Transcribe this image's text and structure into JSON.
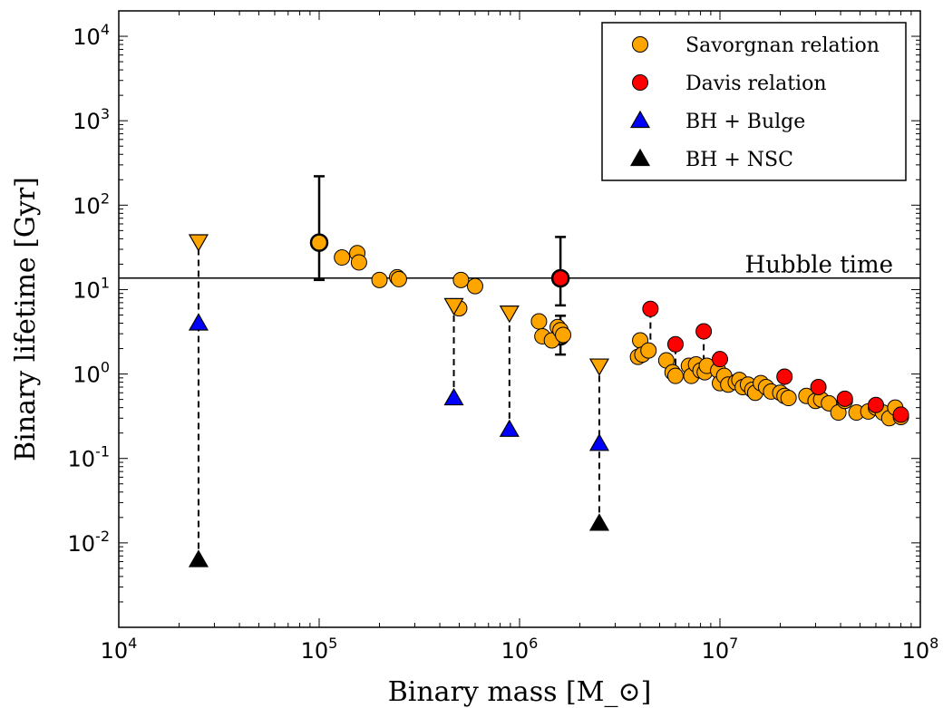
{
  "chart_data": {
    "type": "scatter",
    "xscale": "log",
    "yscale": "log",
    "xlim": [
      10000,
      100000000
    ],
    "ylim": [
      0.001,
      20000
    ],
    "xlabel": "Binary mass [M_⊙]",
    "ylabel": "Binary lifetime [Gyr]",
    "x_ticks": [
      {
        "value": 10000,
        "base": "10",
        "exp": "4"
      },
      {
        "value": 100000,
        "base": "10",
        "exp": "5"
      },
      {
        "value": 1000000,
        "base": "10",
        "exp": "6"
      },
      {
        "value": 10000000,
        "base": "10",
        "exp": "7"
      },
      {
        "value": 100000000,
        "base": "10",
        "exp": "8"
      }
    ],
    "y_ticks": [
      {
        "value": 0.01,
        "base": "10",
        "exp": "-2"
      },
      {
        "value": 0.1,
        "base": "10",
        "exp": "-1"
      },
      {
        "value": 1,
        "base": "10",
        "exp": "0"
      },
      {
        "value": 10,
        "base": "10",
        "exp": "1"
      },
      {
        "value": 100,
        "base": "10",
        "exp": "2"
      },
      {
        "value": 1000,
        "base": "10",
        "exp": "3"
      },
      {
        "value": 10000,
        "base": "10",
        "exp": "4"
      }
    ],
    "hubble_line": {
      "y": 13.7,
      "label": "Hubble time"
    },
    "legend": {
      "placement": "top-right",
      "entries": [
        {
          "label": "Savorgnan relation",
          "marker": "circle",
          "color": "#FFA500"
        },
        {
          "label": "Davis relation",
          "marker": "circle",
          "color": "#FF0000"
        },
        {
          "label": "BH + Bulge",
          "marker": "triangle-up",
          "color": "#0000FF"
        },
        {
          "label": "BH + NSC",
          "marker": "triangle-up",
          "color": "#000000"
        }
      ]
    },
    "series": [
      {
        "name": "Savorgnan relation",
        "marker": "circle",
        "color": "#FFA500",
        "points": [
          [
            130000,
            24
          ],
          [
            155000,
            27
          ],
          [
            158000,
            21
          ],
          [
            200000,
            13
          ],
          [
            245000,
            14
          ],
          [
            250000,
            13.3
          ],
          [
            510000,
            13
          ],
          [
            500000,
            6
          ],
          [
            600000,
            11
          ],
          [
            1250000,
            4.2
          ],
          [
            1300000,
            2.8
          ],
          [
            1450000,
            2.5
          ],
          [
            1550000,
            3.6
          ],
          [
            1600000,
            3.3
          ],
          [
            1650000,
            2.9
          ],
          [
            3900000,
            1.6
          ],
          [
            4000000,
            2.5
          ],
          [
            4100000,
            1.7
          ],
          [
            4400000,
            1.9
          ],
          [
            5400000,
            1.45
          ],
          [
            5800000,
            1.05
          ],
          [
            6000000,
            0.95
          ],
          [
            7000000,
            1.25
          ],
          [
            7200000,
            0.95
          ],
          [
            7600000,
            1.3
          ],
          [
            8000000,
            1.1
          ],
          [
            8400000,
            1.05
          ],
          [
            8600000,
            1.25
          ],
          [
            9800000,
            1.1
          ],
          [
            10000000,
            0.78
          ],
          [
            10500000,
            0.95
          ],
          [
            11000000,
            0.75
          ],
          [
            12000000,
            0.8
          ],
          [
            12500000,
            0.85
          ],
          [
            13000000,
            0.7
          ],
          [
            13800000,
            0.75
          ],
          [
            14500000,
            0.65
          ],
          [
            15000000,
            0.6
          ],
          [
            16000000,
            0.78
          ],
          [
            17000000,
            0.7
          ],
          [
            18000000,
            0.62
          ],
          [
            20000000,
            0.6
          ],
          [
            21000000,
            0.55
          ],
          [
            22000000,
            0.52
          ],
          [
            27000000,
            0.55
          ],
          [
            30000000,
            0.48
          ],
          [
            32000000,
            0.5
          ],
          [
            35000000,
            0.45
          ],
          [
            39000000,
            0.35
          ],
          [
            42000000,
            0.48
          ],
          [
            48000000,
            0.35
          ],
          [
            55000000,
            0.36
          ],
          [
            60000000,
            0.4
          ],
          [
            65000000,
            0.35
          ],
          [
            70000000,
            0.3
          ],
          [
            75000000,
            0.4
          ],
          [
            80000000,
            0.31
          ]
        ]
      },
      {
        "name": "Davis relation",
        "marker": "circle",
        "color": "#FF0000",
        "points": [
          [
            4500000,
            5.9
          ],
          [
            6000000,
            2.25
          ],
          [
            8300000,
            3.2
          ],
          [
            10000000,
            1.5
          ],
          [
            21000000,
            0.93
          ],
          [
            31000000,
            0.7
          ],
          [
            42000000,
            0.51
          ],
          [
            60000000,
            0.43
          ],
          [
            80000000,
            0.33
          ]
        ]
      },
      {
        "name": "BH + Bulge",
        "marker": "triangle-up",
        "color": "#0000FF",
        "points": [
          [
            25000,
            4.0
          ],
          [
            470000,
            0.52
          ],
          [
            890000,
            0.22
          ],
          [
            2500000,
            0.15
          ]
        ]
      },
      {
        "name": "BH + NSC",
        "marker": "triangle-up",
        "color": "#000000",
        "points": [
          [
            25000,
            0.0063
          ],
          [
            2500000,
            0.017
          ]
        ]
      },
      {
        "name": "",
        "marker": "triangle-down",
        "color": "#FFA500",
        "points": [
          [
            25000,
            37
          ],
          [
            470000,
            6.5
          ],
          [
            890000,
            5.3
          ],
          [
            2500000,
            1.25
          ]
        ]
      }
    ],
    "error_points": [
      {
        "x": 100000,
        "y": 36,
        "ylo": 13,
        "yhi": 220,
        "color": "#FFA500"
      },
      {
        "x": 1600000,
        "y": 13.6,
        "ylo": 6.5,
        "yhi": 42,
        "color": "#FF0000"
      },
      {
        "x": 1600000,
        "y": 2.8,
        "ylo": 1.7,
        "yhi": 4.9,
        "color": "#FFA500"
      }
    ],
    "dashed_links": [
      {
        "x": 25000,
        "y1": 0.0063,
        "y2": 37
      },
      {
        "x": 470000,
        "y1": 0.52,
        "y2": 6.5
      },
      {
        "x": 890000,
        "y1": 0.22,
        "y2": 5.3
      },
      {
        "x": 2500000,
        "y1": 0.017,
        "y2": 1.25
      },
      {
        "x": 4500000,
        "y1": 1.9,
        "y2": 5.9
      },
      {
        "x": 6000000,
        "y1": 0.95,
        "y2": 2.25
      },
      {
        "x": 8300000,
        "y1": 1.05,
        "y2": 3.2
      },
      {
        "x": 10000000,
        "y1": 1.1,
        "y2": 1.5
      },
      {
        "x": 21000000,
        "y1": 0.55,
        "y2": 0.93
      },
      {
        "x": 31000000,
        "y1": 0.5,
        "y2": 0.7
      },
      {
        "x": 42000000,
        "y1": 0.35,
        "y2": 0.51
      }
    ]
  }
}
